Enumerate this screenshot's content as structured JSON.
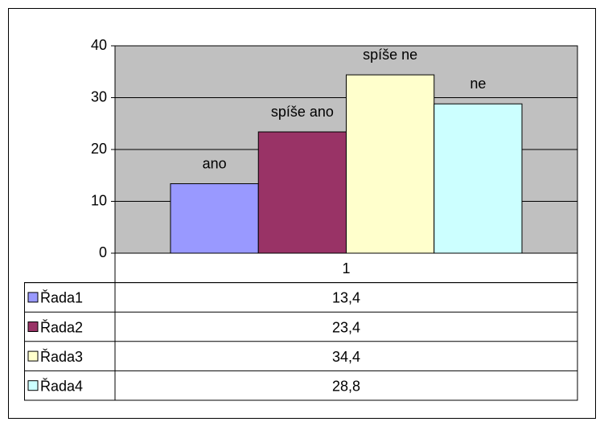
{
  "chart_data": {
    "type": "bar",
    "categories": [
      "1"
    ],
    "series": [
      {
        "name": "Řada1",
        "color": "#9999ff",
        "values": [
          13.4
        ],
        "value_labels": [
          "13,4"
        ],
        "annotation": "ano"
      },
      {
        "name": "Řada2",
        "color": "#993366",
        "values": [
          23.4
        ],
        "value_labels": [
          "23,4"
        ],
        "annotation": "spíše ano"
      },
      {
        "name": "Řada3",
        "color": "#ffffcc",
        "values": [
          34.4
        ],
        "value_labels": [
          "34,4"
        ],
        "annotation": "spíše ne"
      },
      {
        "name": "Řada4",
        "color": "#ccffff",
        "values": [
          28.8
        ],
        "value_labels": [
          "28,8"
        ],
        "annotation": "ne"
      }
    ],
    "ylim": [
      0,
      40
    ],
    "yticks": [
      0,
      10,
      20,
      30,
      40
    ],
    "grid": true,
    "plot_background": "#c0c0c0"
  }
}
